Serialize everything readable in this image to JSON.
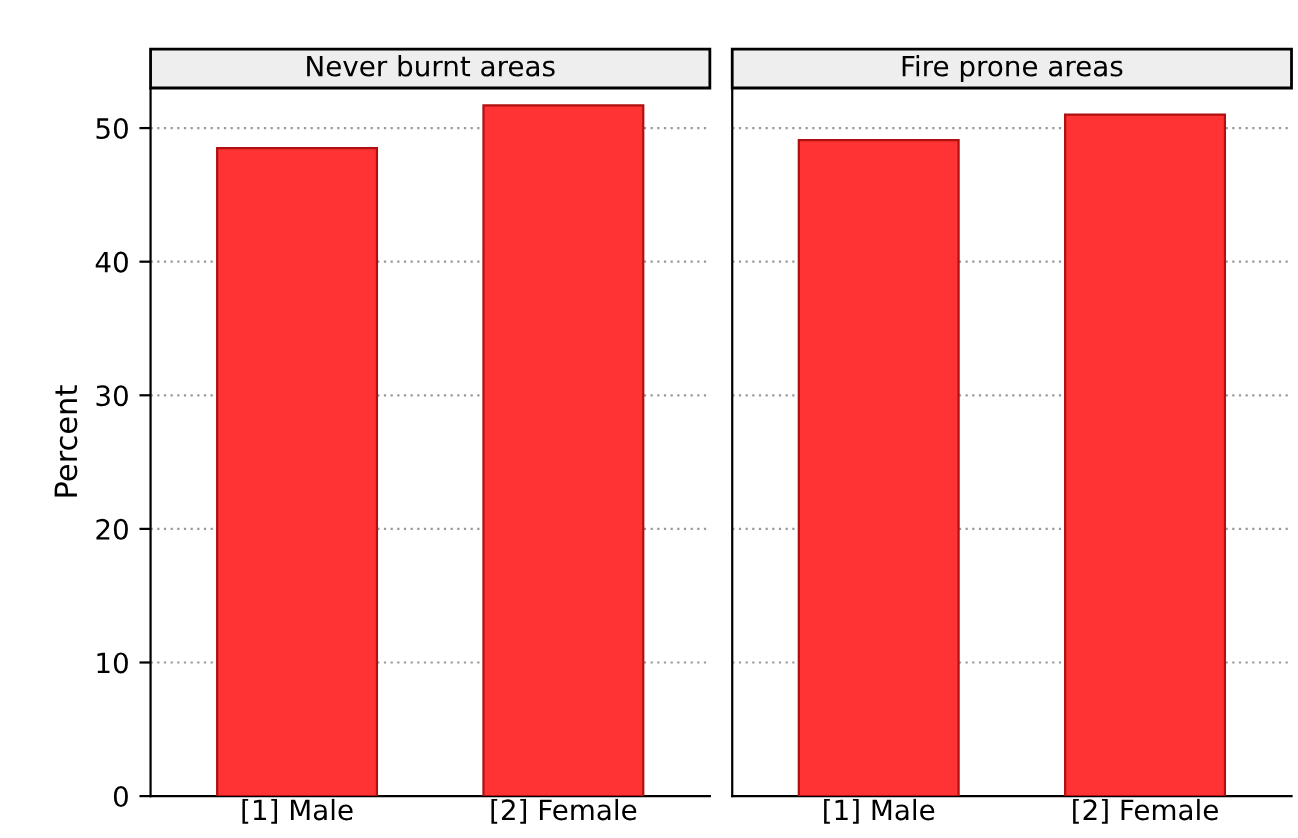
{
  "chart_data": [
    {
      "type": "bar",
      "title": "Never burnt areas",
      "ylabel": "Percent",
      "categories": [
        "[1] Male",
        "[2] Female"
      ],
      "values": [
        48.5,
        51.7
      ],
      "color": "#ff3333",
      "ylim": [
        0,
        53
      ],
      "yticks": [
        0,
        10,
        20,
        30,
        40,
        50
      ],
      "grid": "y"
    },
    {
      "type": "bar",
      "title": "Fire prone areas",
      "categories": [
        "[1] Male",
        "[2] Female"
      ],
      "values": [
        49.1,
        51.0
      ],
      "color": "#ff3333",
      "ylim": [
        0,
        53
      ],
      "yticks": [
        0,
        10,
        20,
        30,
        40,
        50
      ],
      "grid": "y",
      "tick_labels": "x"
    }
  ]
}
